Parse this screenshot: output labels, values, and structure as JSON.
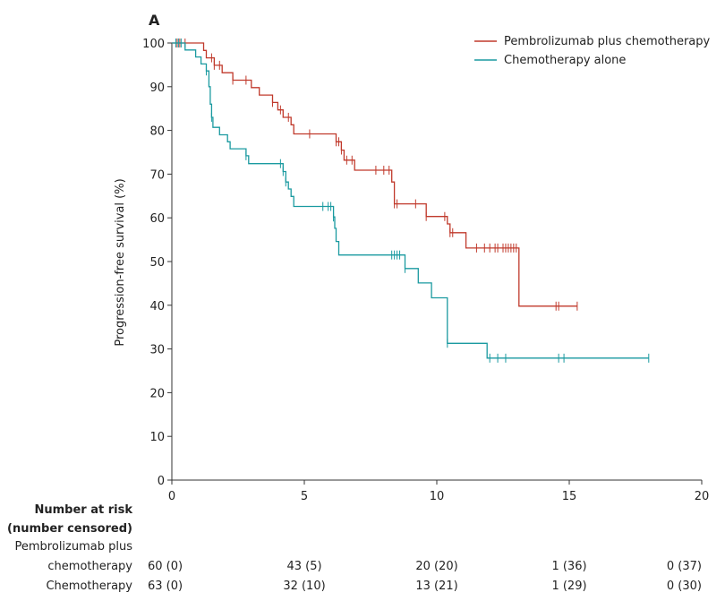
{
  "chart_data": {
    "type": "line",
    "panel_label": "A",
    "ylabel": "Progression-free survival (%)",
    "xlim": [
      0,
      20
    ],
    "ylim": [
      0,
      100
    ],
    "x_ticks": [
      0,
      5,
      10,
      15,
      20
    ],
    "y_ticks": [
      0,
      10,
      20,
      30,
      40,
      50,
      60,
      70,
      80,
      90,
      100
    ],
    "legend_position": "top-right",
    "series": [
      {
        "name": "Pembrolizumab plus chemotherapy",
        "color": "#c0392b",
        "steps": [
          [
            0,
            100
          ],
          [
            1.2,
            98.3
          ],
          [
            1.3,
            96.6
          ],
          [
            1.6,
            94.9
          ],
          [
            1.9,
            93.2
          ],
          [
            2.3,
            91.5
          ],
          [
            3.0,
            89.8
          ],
          [
            3.3,
            88.1
          ],
          [
            3.8,
            86.4
          ],
          [
            4.0,
            84.7
          ],
          [
            4.2,
            83.0
          ],
          [
            4.5,
            81.3
          ],
          [
            4.6,
            79.2
          ],
          [
            6.2,
            77.4
          ],
          [
            6.4,
            75.5
          ],
          [
            6.5,
            73.2
          ],
          [
            6.9,
            70.9
          ],
          [
            8.3,
            68.2
          ],
          [
            8.4,
            63.2
          ],
          [
            9.6,
            60.3
          ],
          [
            10.4,
            58.6
          ],
          [
            10.5,
            56.6
          ],
          [
            11.1,
            53.1
          ],
          [
            13.1,
            39.8
          ],
          [
            15.3,
            39.8
          ]
        ],
        "censor_times": [
          0.2,
          0.3,
          0.5,
          1.5,
          1.6,
          1.8,
          2.3,
          2.8,
          3.8,
          4.1,
          4.4,
          5.2,
          6.2,
          6.3,
          6.4,
          6.6,
          6.8,
          7.7,
          8.0,
          8.2,
          8.4,
          8.5,
          9.2,
          9.6,
          10.3,
          10.5,
          10.6,
          11.5,
          11.8,
          12.0,
          12.2,
          12.3,
          12.5,
          12.6,
          12.7,
          12.8,
          12.9,
          13.0,
          14.5,
          14.6,
          15.3
        ]
      },
      {
        "name": "Chemotherapy alone",
        "color": "#1a9aa0",
        "steps": [
          [
            0,
            100
          ],
          [
            0.5,
            98.4
          ],
          [
            0.9,
            96.8
          ],
          [
            1.1,
            95.2
          ],
          [
            1.3,
            93.6
          ],
          [
            1.4,
            90.0
          ],
          [
            1.45,
            86.0
          ],
          [
            1.5,
            83.0
          ],
          [
            1.55,
            80.7
          ],
          [
            1.8,
            79.0
          ],
          [
            2.1,
            77.4
          ],
          [
            2.2,
            75.8
          ],
          [
            2.8,
            74.2
          ],
          [
            2.9,
            72.4
          ],
          [
            4.2,
            70.6
          ],
          [
            4.3,
            68.2
          ],
          [
            4.4,
            66.6
          ],
          [
            4.5,
            64.9
          ],
          [
            4.6,
            62.6
          ],
          [
            6.1,
            60.2
          ],
          [
            6.15,
            57.6
          ],
          [
            6.2,
            54.6
          ],
          [
            6.3,
            51.5
          ],
          [
            8.8,
            48.4
          ],
          [
            9.3,
            45.1
          ],
          [
            9.8,
            41.7
          ],
          [
            10.4,
            31.3
          ],
          [
            11.9,
            27.9
          ],
          [
            18.0,
            27.9
          ]
        ],
        "censor_times": [
          0.15,
          0.25,
          0.35,
          1.3,
          1.5,
          2.8,
          4.1,
          4.2,
          4.3,
          5.7,
          5.9,
          6.0,
          6.1,
          8.3,
          8.4,
          8.5,
          8.6,
          8.8,
          10.4,
          12.0,
          12.3,
          12.6,
          14.6,
          14.8,
          18.0
        ]
      }
    ]
  },
  "risk_table": {
    "title_line1": "Number at risk",
    "title_line2": "(number censored)",
    "rows": [
      {
        "label_line1": "Pembrolizumab plus",
        "label_line2": "chemotherapy",
        "values": [
          "60 (0)",
          "43 (5)",
          "20 (20)",
          "1 (36)",
          "0 (37)"
        ]
      },
      {
        "label_line1": "",
        "label_line2": "Chemotherapy",
        "values": [
          "63 (0)",
          "32 (10)",
          "13 (21)",
          "1 (29)",
          "0 (30)"
        ]
      }
    ]
  }
}
